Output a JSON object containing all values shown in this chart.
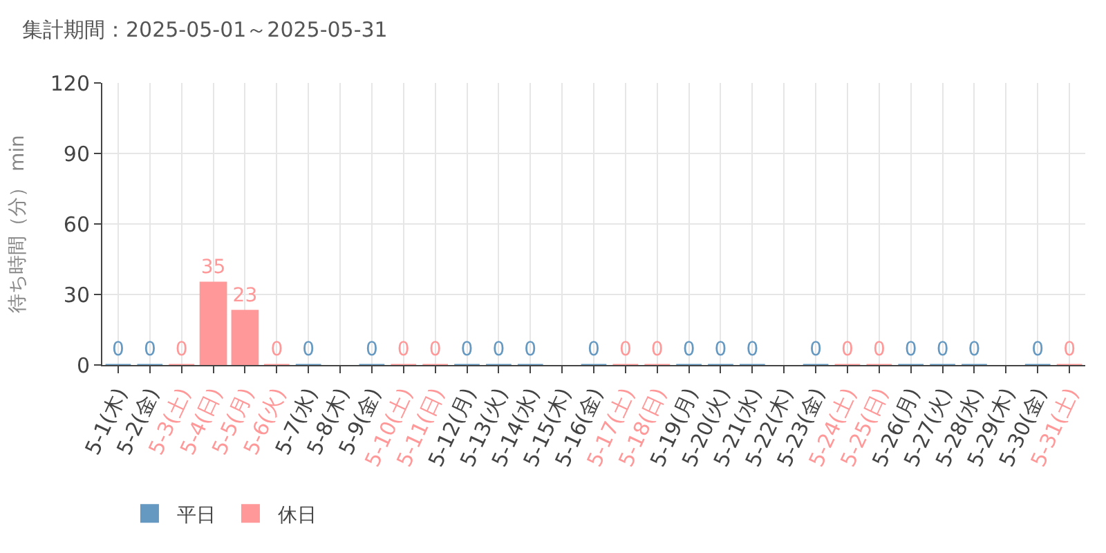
{
  "chart_data": {
    "type": "bar",
    "title": "集計期間：2025-05-01～2025-05-31",
    "ylabel": "待ち時間（分） min",
    "categories": [
      "5-1(木)",
      "5-2(金)",
      "5-3(土)",
      "5-4(日)",
      "5-5(月)",
      "5-6(火)",
      "5-7(水)",
      "5-8(木)",
      "5-9(金)",
      "5-10(土)",
      "5-11(日)",
      "5-12(月)",
      "5-13(火)",
      "5-14(水)",
      "5-15(木)",
      "5-16(金)",
      "5-17(土)",
      "5-18(日)",
      "5-19(月)",
      "5-20(火)",
      "5-21(水)",
      "5-22(木)",
      "5-23(金)",
      "5-24(土)",
      "5-25(日)",
      "5-26(月)",
      "5-27(火)",
      "5-28(水)",
      "5-29(木)",
      "5-30(金)",
      "5-31(土)"
    ],
    "series": [
      {
        "name": "平日",
        "color": "#6699c2",
        "values": [
          0,
          0,
          null,
          null,
          null,
          null,
          0,
          null,
          0,
          null,
          null,
          0,
          0,
          0,
          null,
          0,
          null,
          null,
          0,
          0,
          0,
          null,
          0,
          null,
          null,
          0,
          0,
          0,
          null,
          0,
          null
        ]
      },
      {
        "name": "休日",
        "color": "#ff9999",
        "values": [
          null,
          null,
          0,
          35,
          23,
          0,
          null,
          null,
          null,
          0,
          0,
          null,
          null,
          null,
          null,
          null,
          0,
          0,
          null,
          null,
          null,
          null,
          null,
          0,
          0,
          null,
          null,
          null,
          null,
          null,
          0
        ]
      }
    ],
    "ylim": [
      0,
      120
    ],
    "yticks": [
      0,
      30,
      60,
      90,
      120
    ],
    "grid": true,
    "legend": "bottom left",
    "data_labels": true
  }
}
